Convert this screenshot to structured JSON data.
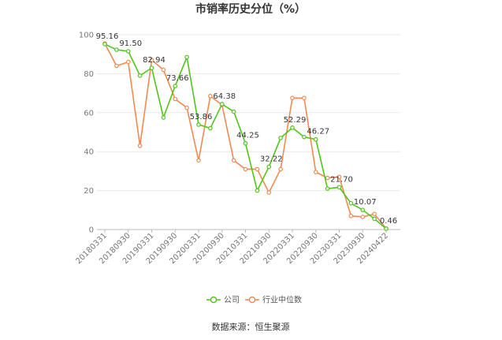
{
  "chart_data": {
    "type": "line",
    "title": "市销率历史分位（%）",
    "xlabel": "",
    "ylabel": "",
    "ylim": [
      0,
      100
    ],
    "yticks": [
      0,
      20,
      40,
      60,
      80,
      100
    ],
    "x_tick_labels": [
      "20180331",
      "20180930",
      "20190331",
      "20190930",
      "20200331",
      "20200930",
      "20210331",
      "20210930",
      "20220331",
      "20220930",
      "20230331",
      "20230930",
      "20240422"
    ],
    "n_points": 25,
    "grid": true,
    "legend_position": "bottom",
    "series": [
      {
        "name": "公司",
        "color": "#52c41a",
        "values": [
          95.16,
          92.3,
          91.5,
          79.0,
          82.94,
          57.5,
          73.66,
          88.5,
          53.86,
          52.0,
          64.38,
          60.5,
          44.25,
          20.0,
          32.22,
          47.0,
          52.29,
          47.5,
          46.27,
          21.0,
          21.7,
          13.5,
          10.07,
          5.5,
          0.46
        ],
        "labels": {
          "0": "95.16",
          "2": "91.50",
          "4": "82.94",
          "6": "73.66",
          "8": "53.86",
          "10": "64.38",
          "12": "44.25",
          "14": "32.22",
          "16": "52.29",
          "18": "46.27",
          "20": "21.70",
          "22": "10.07",
          "24": "0.46"
        }
      },
      {
        "name": "行业中位数",
        "color": "#f08a52",
        "values": [
          95.5,
          84.0,
          86.0,
          43.0,
          87.0,
          82.0,
          67.0,
          62.5,
          35.5,
          68.5,
          64.0,
          35.5,
          31.0,
          31.0,
          19.0,
          31.0,
          67.5,
          67.5,
          29.5,
          26.5,
          27.0,
          7.0,
          6.5,
          8.0,
          0.5
        ]
      }
    ]
  },
  "legend": {
    "items": [
      {
        "label": "公司",
        "color": "#52c41a"
      },
      {
        "label": "行业中位数",
        "color": "#f08a52"
      }
    ]
  },
  "source": "数据来源：恒生聚源"
}
